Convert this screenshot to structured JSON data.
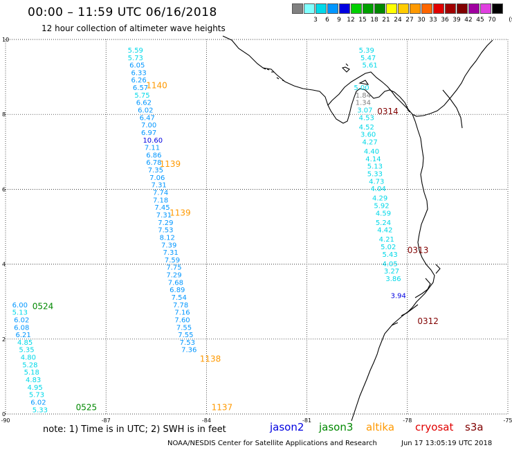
{
  "header": {
    "title": "00:00 – 11:59 UTC 06/16/2018",
    "subtitle": "12 hour collection of altimeter wave heights"
  },
  "legend": {
    "unit": "(ft)",
    "items": [
      {
        "label": "",
        "color": "#808080"
      },
      {
        "label": "3",
        "color": "#80ffff"
      },
      {
        "label": "6",
        "color": "#00d8e8"
      },
      {
        "label": "9",
        "color": "#0096ff"
      },
      {
        "label": "12",
        "color": "#0000e0"
      },
      {
        "label": "15",
        "color": "#00d000"
      },
      {
        "label": "18",
        "color": "#00a000"
      },
      {
        "label": "21",
        "color": "#008800"
      },
      {
        "label": "24",
        "color": "#ffff00"
      },
      {
        "label": "27",
        "color": "#ffcc00"
      },
      {
        "label": "30",
        "color": "#ff9900"
      },
      {
        "label": "33",
        "color": "#ff6600"
      },
      {
        "label": "36",
        "color": "#e00000"
      },
      {
        "label": "39",
        "color": "#a00000"
      },
      {
        "label": "42",
        "color": "#800000"
      },
      {
        "label": "45",
        "color": "#a000a0"
      },
      {
        "label": "70",
        "color": "#e040e0"
      },
      {
        "label": "",
        "color": "#000000"
      }
    ]
  },
  "axes": {
    "lon_ticks": [
      "-90",
      "-87",
      "-84",
      "-81",
      "-78",
      "-75"
    ],
    "lat_ticks": [
      "0",
      "2",
      "4",
      "6",
      "8",
      "10"
    ]
  },
  "tracks": [
    {
      "pass_label": "1140",
      "label_lat": 8.7,
      "label_lon": -85.8,
      "label_color": "#ff9900"
    },
    {
      "pass_label": "1139",
      "label_lat": 6.6,
      "label_lon": -85.4,
      "label_color": "#ff9900"
    },
    {
      "pass_label": "1139",
      "label_lat": 5.3,
      "label_lon": -85.1,
      "label_color": "#ff9900"
    },
    {
      "pass_label": "1138",
      "label_lat": 1.4,
      "label_lon": -84.2,
      "label_color": "#ff9900"
    },
    {
      "pass_label": "1137",
      "label_lat": 0.1,
      "label_lon": -83.85,
      "label_color": "#ff9900"
    },
    {
      "pass_label": "0524",
      "label_lat": 2.8,
      "label_lon": -89.2,
      "label_color": "#008800"
    },
    {
      "pass_label": "0525",
      "label_lat": 0.1,
      "label_lon": -87.9,
      "label_color": "#008800"
    },
    {
      "pass_label": "0314",
      "label_lat": 8.0,
      "label_lon": -78.9,
      "label_color": "#800000"
    },
    {
      "pass_label": "0313",
      "label_lat": 4.3,
      "label_lon": -78.0,
      "label_color": "#800000"
    },
    {
      "pass_label": "0312",
      "label_lat": 2.4,
      "label_lon": -77.7,
      "label_color": "#800000"
    }
  ],
  "observations": [
    {
      "lat": 9.65,
      "lon": -86.35,
      "value": "5.59",
      "color": "#00d8e8"
    },
    {
      "lat": 9.45,
      "lon": -86.35,
      "value": "5.73",
      "color": "#00d8e8"
    },
    {
      "lat": 9.25,
      "lon": -86.3,
      "value": "6.05",
      "color": "#0096ff"
    },
    {
      "lat": 9.05,
      "lon": -86.25,
      "value": "6.33",
      "color": "#0096ff"
    },
    {
      "lat": 8.85,
      "lon": -86.25,
      "value": "6.26",
      "color": "#0096ff"
    },
    {
      "lat": 8.65,
      "lon": -86.2,
      "value": "6.57",
      "color": "#0096ff"
    },
    {
      "lat": 8.45,
      "lon": -86.15,
      "value": "5.75",
      "color": "#00d8e8"
    },
    {
      "lat": 8.25,
      "lon": -86.1,
      "value": "6.62",
      "color": "#0096ff"
    },
    {
      "lat": 8.05,
      "lon": -86.05,
      "value": "6.02",
      "color": "#0096ff"
    },
    {
      "lat": 7.85,
      "lon": -86.0,
      "value": "6.47",
      "color": "#0096ff"
    },
    {
      "lat": 7.65,
      "lon": -85.95,
      "value": "7.00",
      "color": "#0096ff"
    },
    {
      "lat": 7.45,
      "lon": -85.95,
      "value": "6.97",
      "color": "#0096ff"
    },
    {
      "lat": 7.25,
      "lon": -85.9,
      "value": "10.60",
      "color": "#0000e0"
    },
    {
      "lat": 7.05,
      "lon": -85.85,
      "value": "7.11",
      "color": "#0096ff"
    },
    {
      "lat": 6.85,
      "lon": -85.8,
      "value": "6.86",
      "color": "#0096ff"
    },
    {
      "lat": 6.65,
      "lon": -85.8,
      "value": "6.78",
      "color": "#0096ff"
    },
    {
      "lat": 6.45,
      "lon": -85.75,
      "value": "7.35",
      "color": "#0096ff"
    },
    {
      "lat": 6.25,
      "lon": -85.7,
      "value": "7.06",
      "color": "#0096ff"
    },
    {
      "lat": 6.05,
      "lon": -85.65,
      "value": "7.31",
      "color": "#0096ff"
    },
    {
      "lat": 5.85,
      "lon": -85.6,
      "value": "7.74",
      "color": "#0096ff"
    },
    {
      "lat": 5.65,
      "lon": -85.6,
      "value": "7.18",
      "color": "#0096ff"
    },
    {
      "lat": 5.45,
      "lon": -85.55,
      "value": "7.45",
      "color": "#0096ff"
    },
    {
      "lat": 5.25,
      "lon": -85.5,
      "value": "7.31",
      "color": "#0096ff"
    },
    {
      "lat": 5.05,
      "lon": -85.45,
      "value": "7.29",
      "color": "#0096ff"
    },
    {
      "lat": 4.85,
      "lon": -85.45,
      "value": "7.53",
      "color": "#0096ff"
    },
    {
      "lat": 4.65,
      "lon": -85.4,
      "value": "8.12",
      "color": "#0096ff"
    },
    {
      "lat": 4.45,
      "lon": -85.35,
      "value": "7.39",
      "color": "#0096ff"
    },
    {
      "lat": 4.25,
      "lon": -85.3,
      "value": "7.31",
      "color": "#0096ff"
    },
    {
      "lat": 4.05,
      "lon": -85.25,
      "value": "7.59",
      "color": "#0096ff"
    },
    {
      "lat": 3.85,
      "lon": -85.2,
      "value": "7.75",
      "color": "#0096ff"
    },
    {
      "lat": 3.65,
      "lon": -85.2,
      "value": "7.29",
      "color": "#0096ff"
    },
    {
      "lat": 3.45,
      "lon": -85.15,
      "value": "7.68",
      "color": "#0096ff"
    },
    {
      "lat": 3.25,
      "lon": -85.1,
      "value": "6.89",
      "color": "#0096ff"
    },
    {
      "lat": 3.05,
      "lon": -85.05,
      "value": "7.54",
      "color": "#0096ff"
    },
    {
      "lat": 2.85,
      "lon": -85.0,
      "value": "7.78",
      "color": "#0096ff"
    },
    {
      "lat": 2.65,
      "lon": -84.95,
      "value": "7.16",
      "color": "#0096ff"
    },
    {
      "lat": 2.45,
      "lon": -84.95,
      "value": "7.60",
      "color": "#0096ff"
    },
    {
      "lat": 2.25,
      "lon": -84.9,
      "value": "7.55",
      "color": "#0096ff"
    },
    {
      "lat": 2.05,
      "lon": -84.85,
      "value": "7.55",
      "color": "#0096ff"
    },
    {
      "lat": 1.85,
      "lon": -84.8,
      "value": "7.53",
      "color": "#0096ff"
    },
    {
      "lat": 1.65,
      "lon": -84.75,
      "value": "7.36",
      "color": "#0096ff"
    },
    {
      "lat": 2.85,
      "lon": -89.8,
      "value": "6.00",
      "color": "#0096ff"
    },
    {
      "lat": 2.65,
      "lon": -89.8,
      "value": "5.13",
      "color": "#00d8e8"
    },
    {
      "lat": 2.45,
      "lon": -89.75,
      "value": "6.02",
      "color": "#0096ff"
    },
    {
      "lat": 2.25,
      "lon": -89.75,
      "value": "6.08",
      "color": "#0096ff"
    },
    {
      "lat": 2.05,
      "lon": -89.7,
      "value": "6.21",
      "color": "#0096ff"
    },
    {
      "lat": 1.85,
      "lon": -89.65,
      "value": "4.85",
      "color": "#00d8e8"
    },
    {
      "lat": 1.65,
      "lon": -89.6,
      "value": "5.35",
      "color": "#00d8e8"
    },
    {
      "lat": 1.45,
      "lon": -89.55,
      "value": "4.80",
      "color": "#00d8e8"
    },
    {
      "lat": 1.25,
      "lon": -89.5,
      "value": "5.28",
      "color": "#00d8e8"
    },
    {
      "lat": 1.05,
      "lon": -89.45,
      "value": "5.18",
      "color": "#00d8e8"
    },
    {
      "lat": 0.85,
      "lon": -89.4,
      "value": "4.83",
      "color": "#00d8e8"
    },
    {
      "lat": 0.65,
      "lon": -89.35,
      "value": "4.95",
      "color": "#00d8e8"
    },
    {
      "lat": 0.45,
      "lon": -89.3,
      "value": "5.73",
      "color": "#00d8e8"
    },
    {
      "lat": 0.25,
      "lon": -89.25,
      "value": "6.02",
      "color": "#0096ff"
    },
    {
      "lat": 0.05,
      "lon": -89.2,
      "value": "5.33",
      "color": "#00d8e8"
    },
    {
      "lat": 9.65,
      "lon": -79.45,
      "value": "5.39",
      "color": "#00d8e8"
    },
    {
      "lat": 9.45,
      "lon": -79.4,
      "value": "5.47",
      "color": "#00d8e8"
    },
    {
      "lat": 9.25,
      "lon": -79.35,
      "value": "5.61",
      "color": "#00d8e8"
    },
    {
      "lat": 8.65,
      "lon": -79.6,
      "value": "5.00",
      "color": "#00d8e8"
    },
    {
      "lat": 8.45,
      "lon": -79.55,
      "value": "1.84",
      "color": "#808080"
    },
    {
      "lat": 8.25,
      "lon": -79.55,
      "value": "1.34",
      "color": "#808080"
    },
    {
      "lat": 8.05,
      "lon": -79.5,
      "value": "3.07",
      "color": "#00d8e8"
    },
    {
      "lat": 7.85,
      "lon": -79.45,
      "value": "4.53",
      "color": "#00d8e8"
    },
    {
      "lat": 7.6,
      "lon": -79.45,
      "value": "4.52",
      "color": "#00d8e8"
    },
    {
      "lat": 7.4,
      "lon": -79.4,
      "value": "3.60",
      "color": "#00d8e8"
    },
    {
      "lat": 7.2,
      "lon": -79.35,
      "value": "4.27",
      "color": "#00d8e8"
    },
    {
      "lat": 6.95,
      "lon": -79.3,
      "value": "4.40",
      "color": "#00d8e8"
    },
    {
      "lat": 6.75,
      "lon": -79.25,
      "value": "4.14",
      "color": "#00d8e8"
    },
    {
      "lat": 6.55,
      "lon": -79.2,
      "value": "5.13",
      "color": "#00d8e8"
    },
    {
      "lat": 6.35,
      "lon": -79.2,
      "value": "5.33",
      "color": "#00d8e8"
    },
    {
      "lat": 6.15,
      "lon": -79.15,
      "value": "4.73",
      "color": "#00d8e8"
    },
    {
      "lat": 5.95,
      "lon": -79.1,
      "value": "4.04",
      "color": "#00d8e8"
    },
    {
      "lat": 5.7,
      "lon": -79.05,
      "value": "4.29",
      "color": "#00d8e8"
    },
    {
      "lat": 5.5,
      "lon": -79.0,
      "value": "5.92",
      "color": "#00d8e8"
    },
    {
      "lat": 5.3,
      "lon": -78.95,
      "value": "4.59",
      "color": "#00d8e8"
    },
    {
      "lat": 5.05,
      "lon": -78.95,
      "value": "5.24",
      "color": "#00d8e8"
    },
    {
      "lat": 4.85,
      "lon": -78.9,
      "value": "4.42",
      "color": "#00d8e8"
    },
    {
      "lat": 4.6,
      "lon": -78.85,
      "value": "4.21",
      "color": "#00d8e8"
    },
    {
      "lat": 4.4,
      "lon": -78.8,
      "value": "5.02",
      "color": "#00d8e8"
    },
    {
      "lat": 4.2,
      "lon": -78.75,
      "value": "5.43",
      "color": "#00d8e8"
    },
    {
      "lat": 3.95,
      "lon": -78.75,
      "value": "4.05",
      "color": "#00d8e8"
    },
    {
      "lat": 3.75,
      "lon": -78.7,
      "value": "3.27",
      "color": "#00d8e8"
    },
    {
      "lat": 3.55,
      "lon": -78.65,
      "value": "3.86",
      "color": "#00d8e8"
    },
    {
      "lat": 3.1,
      "lon": -78.5,
      "value": "3.94",
      "color": "#0000e0"
    }
  ],
  "footer": {
    "note": "note: 1) Time is in UTC; 2) SWH is in feet",
    "satellites": [
      {
        "name": "jason2",
        "color": "#0000e0"
      },
      {
        "name": "jason3",
        "color": "#008800"
      },
      {
        "name": "altika",
        "color": "#ff9900"
      },
      {
        "name": "cryosat",
        "color": "#e00000"
      },
      {
        "name": "s3a",
        "color": "#800000"
      }
    ],
    "credit": "NOAA/NESDIS Center for Satellite Applications and Research",
    "timestamp": "Jun 17 13:05:19 UTC 2018"
  }
}
